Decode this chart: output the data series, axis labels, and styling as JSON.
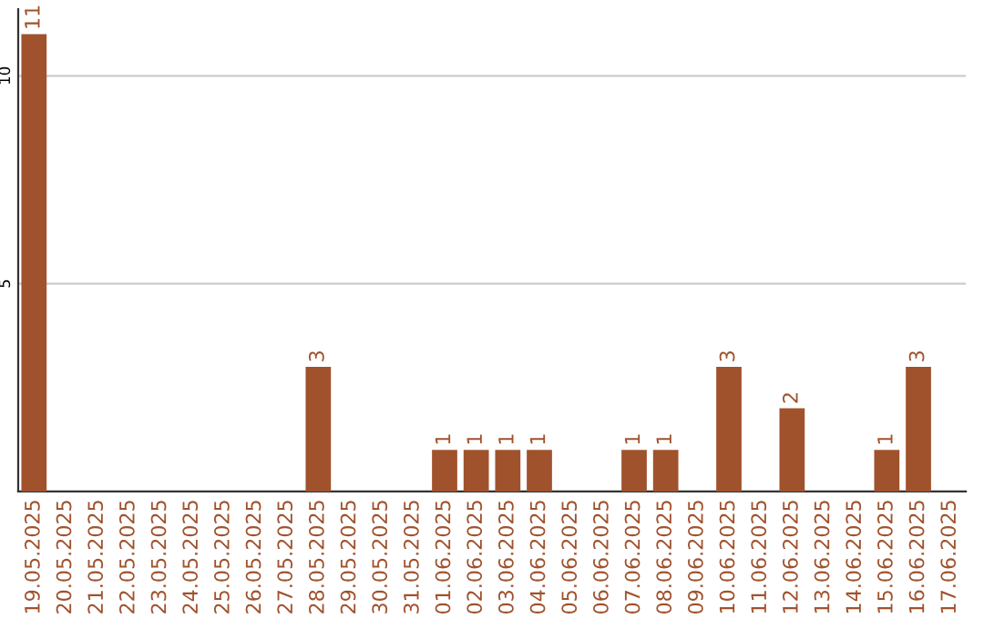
{
  "chart_data": {
    "type": "bar",
    "categories": [
      "19.05.2025",
      "20.05.2025",
      "21.05.2025",
      "22.05.2025",
      "23.05.2025",
      "24.05.2025",
      "25.05.2025",
      "26.05.2025",
      "27.05.2025",
      "28.05.2025",
      "29.05.2025",
      "30.05.2025",
      "31.05.2025",
      "01.06.2025",
      "02.06.2025",
      "03.06.2025",
      "04.06.2025",
      "05.06.2025",
      "06.06.2025",
      "07.06.2025",
      "08.06.2025",
      "09.06.2025",
      "10.06.2025",
      "11.06.2025",
      "12.06.2025",
      "13.06.2025",
      "14.06.2025",
      "15.06.2025",
      "16.06.2025",
      "17.06.2025"
    ],
    "values": [
      11,
      0,
      0,
      0,
      0,
      0,
      0,
      0,
      0,
      3,
      0,
      0,
      0,
      1,
      1,
      1,
      1,
      0,
      0,
      1,
      1,
      0,
      3,
      0,
      2,
      0,
      0,
      1,
      3,
      0
    ],
    "value_labels": [
      "11",
      null,
      null,
      null,
      null,
      null,
      null,
      null,
      null,
      "3",
      null,
      null,
      null,
      "1",
      "1",
      "1",
      "1",
      null,
      null,
      "1",
      "1",
      null,
      "3",
      null,
      "2",
      null,
      null,
      "1",
      "3",
      null
    ],
    "color": "#a0522d",
    "ylim": [
      0,
      11.6
    ],
    "yticks": [
      5,
      10
    ],
    "grid": "y"
  }
}
